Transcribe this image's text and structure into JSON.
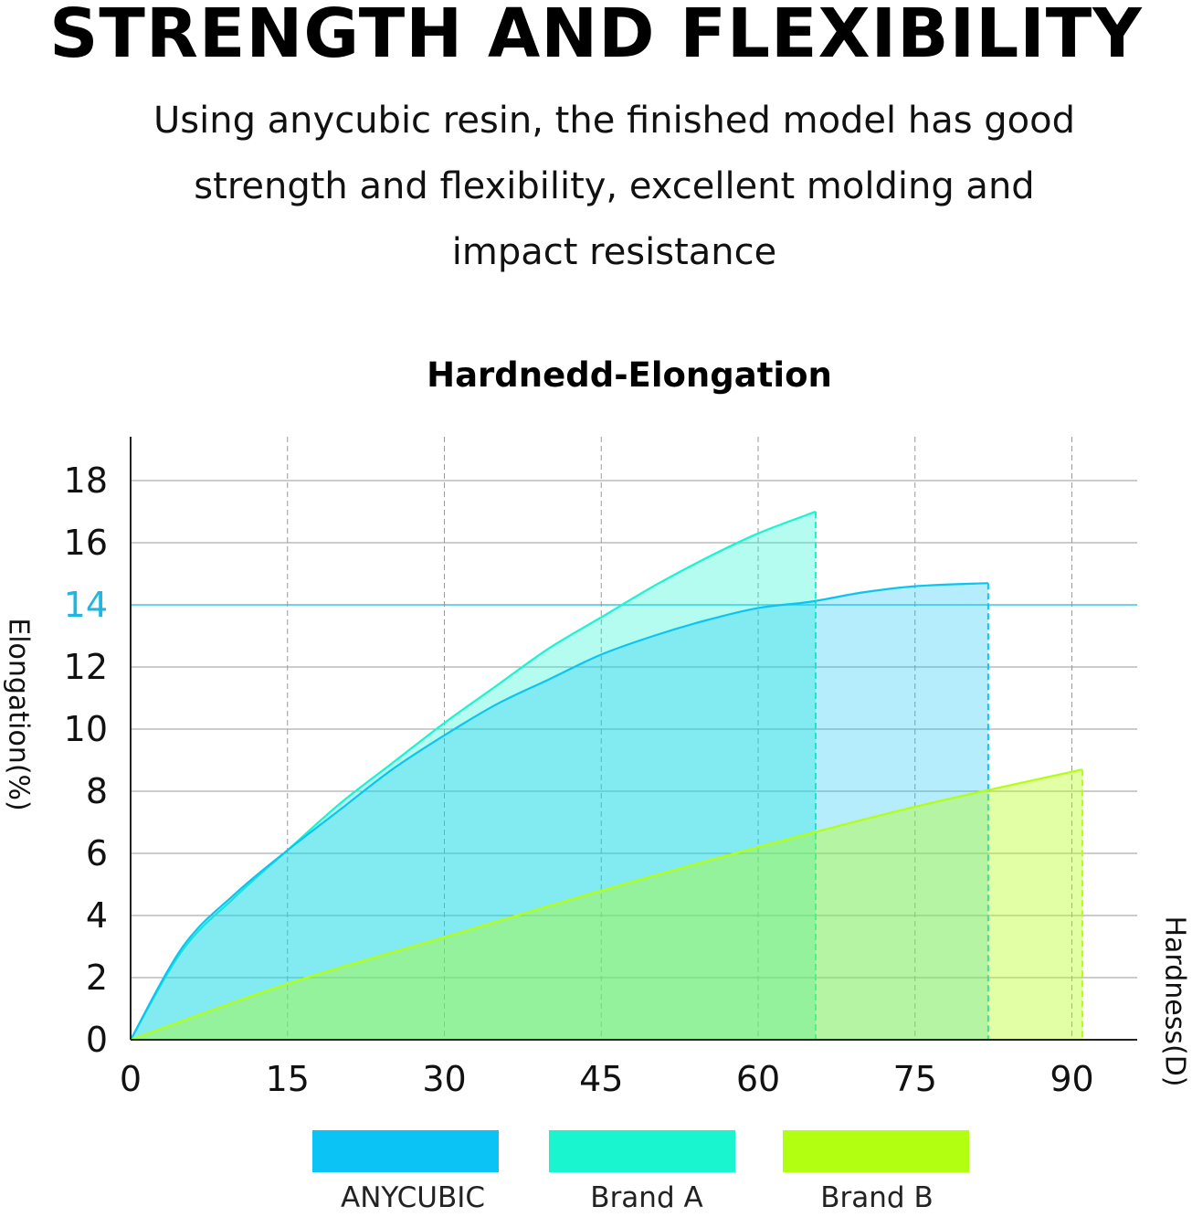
{
  "heading": "STRENGTH AND FLEXIBILITY",
  "subtitle_lines": [
    "Using anycubic resin, the finished model has good",
    "strength and flexibility, excellent molding and",
    "impact resistance"
  ],
  "colors": {
    "anycubic": "#0bc4f5",
    "brand_a": "#19f5cf",
    "brand_b": "#b3ff12",
    "highlight_line": "#3ec6e6"
  },
  "chart_data": {
    "type": "area",
    "title": "Hardnedd-Elongation",
    "xlabel": "Hardness(D)",
    "ylabel": "Elongation(%)",
    "xlim": [
      0,
      95
    ],
    "ylim": [
      0,
      19
    ],
    "x_ticks": [
      0,
      15,
      30,
      45,
      60,
      75,
      90
    ],
    "y_ticks": [
      0,
      2,
      4,
      6,
      8,
      10,
      12,
      14,
      16,
      18
    ],
    "highlight_y": 14,
    "grid": true,
    "legend_position": "bottom",
    "series": [
      {
        "name": "Brand A",
        "color_key": "brand_a",
        "x": [
          0,
          5,
          10,
          15,
          20,
          25,
          30,
          35,
          40,
          45,
          50,
          55,
          60,
          65.5
        ],
        "y": [
          0,
          2.9,
          4.6,
          6.1,
          7.6,
          8.9,
          10.2,
          11.4,
          12.6,
          13.6,
          14.6,
          15.5,
          16.3,
          17.0
        ]
      },
      {
        "name": "ANYCUBIC",
        "color_key": "anycubic",
        "x": [
          0,
          5,
          10,
          15,
          20,
          25,
          30,
          35,
          40,
          45,
          50,
          55,
          60,
          65,
          70,
          75,
          82
        ],
        "y": [
          0,
          3.0,
          4.7,
          6.1,
          7.4,
          8.7,
          9.8,
          10.8,
          11.6,
          12.4,
          13.0,
          13.5,
          13.9,
          14.1,
          14.4,
          14.6,
          14.7
        ]
      },
      {
        "name": "Brand B",
        "color_key": "brand_b",
        "x": [
          0,
          15,
          30,
          45,
          60,
          75,
          91
        ],
        "y": [
          0,
          1.8,
          3.3,
          4.8,
          6.2,
          7.5,
          8.7
        ]
      }
    ]
  }
}
